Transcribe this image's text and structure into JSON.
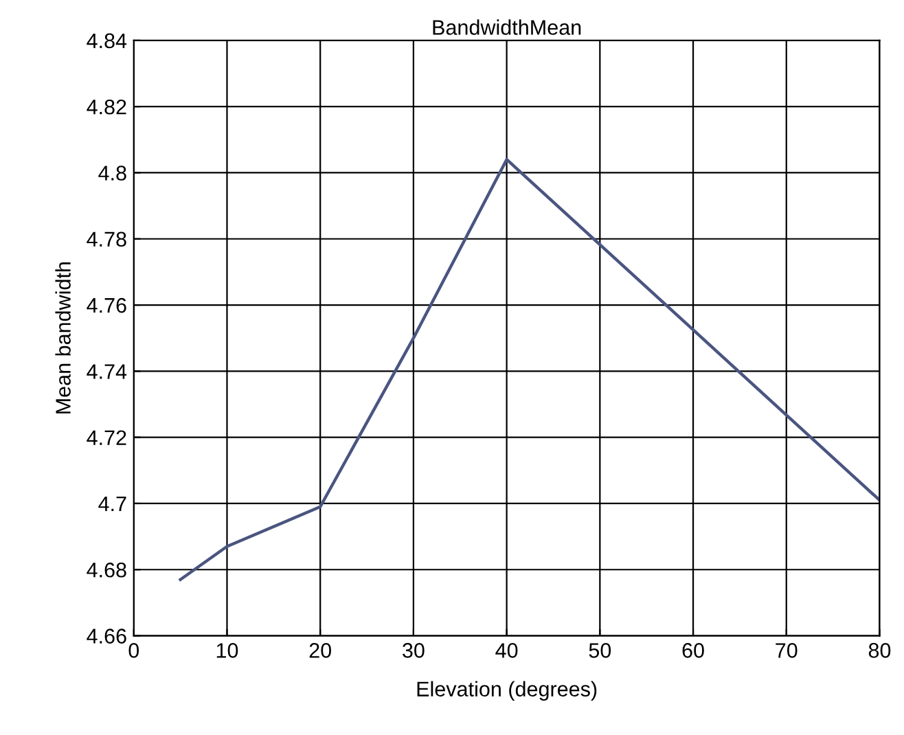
{
  "chart_data": {
    "type": "line",
    "title": "BandwidthMean",
    "xlabel": "Elevation (degrees)",
    "ylabel": "Mean bandwidth",
    "x": [
      5,
      10,
      20,
      30,
      40,
      80
    ],
    "series": [
      {
        "color": "#4a5580",
        "values": [
          4.677,
          4.687,
          4.699,
          4.75,
          4.804,
          4.701
        ]
      }
    ],
    "xlim": [
      0,
      80
    ],
    "xticks": [
      0,
      10,
      20,
      30,
      40,
      50,
      60,
      70,
      80
    ],
    "ylim": [
      4.66,
      4.84
    ],
    "yticks": [
      4.66,
      4.68,
      4.7,
      4.72,
      4.74,
      4.76,
      4.78,
      4.8,
      4.82,
      4.84
    ],
    "grid": true,
    "marker": "none",
    "line_style": "solid",
    "legend": false
  }
}
